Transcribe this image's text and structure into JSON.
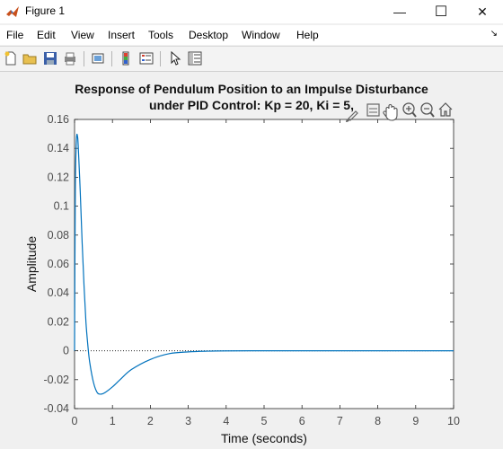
{
  "window": {
    "title": "Figure 1",
    "minimize": "—",
    "maximize": "☐",
    "close": "✕"
  },
  "menu": {
    "items": [
      "File",
      "Edit",
      "View",
      "Insert",
      "Tools",
      "Desktop",
      "Window",
      "Help"
    ],
    "arrow": "↘"
  },
  "toolbar": {
    "icons": [
      "new-figure-icon",
      "open-file-icon",
      "save-icon",
      "print-icon",
      "link-plot-icon",
      "colorbar-icon",
      "legend-icon",
      "edit-plot-arrow-icon",
      "property-inspector-icon"
    ]
  },
  "axes_toolbar": {
    "icons": [
      "brush-icon",
      "data-tips-icon",
      "pan-hand-icon",
      "zoom-in-icon",
      "zoom-out-icon",
      "home-icon"
    ]
  },
  "chart_data": {
    "type": "line",
    "title_line1": "Response of Pendulum Position to an Impulse Disturbance",
    "title_line2": "under PID Control: Kp = 20, Ki = 5,",
    "xlabel": "Time (seconds)",
    "ylabel": "Amplitude",
    "xlim": [
      0,
      10
    ],
    "ylim": [
      -0.04,
      0.16
    ],
    "xticks": [
      "0",
      "1",
      "2",
      "3",
      "4",
      "5",
      "6",
      "7",
      "8",
      "9",
      "10"
    ],
    "yticks": [
      "-0.04",
      "-0.02",
      "0",
      "0.02",
      "0.04",
      "0.06",
      "0.08",
      "0.1",
      "0.12",
      "0.14",
      "0.16"
    ],
    "grid": false,
    "zero_line": "dotted",
    "line_color": "#0072BD",
    "series": [
      {
        "x": [
          0,
          0.02,
          0.05,
          0.08,
          0.1,
          0.15,
          0.2,
          0.25,
          0.3,
          0.35,
          0.4,
          0.5,
          0.6,
          0.7,
          0.8,
          1.0,
          1.2,
          1.5,
          2.0,
          2.5,
          3.0,
          3.5,
          4.0,
          5.0,
          6.0,
          7.0,
          8.0,
          9.0,
          10.0
        ],
        "values": [
          0,
          0.11,
          0.146,
          0.148,
          0.14,
          0.11,
          0.075,
          0.045,
          0.02,
          0.004,
          -0.008,
          -0.022,
          -0.029,
          -0.03,
          -0.029,
          -0.025,
          -0.02,
          -0.013,
          -0.006,
          -0.002,
          -0.0008,
          -0.0003,
          -0.0001,
          0,
          0,
          0,
          0,
          0,
          0
        ]
      }
    ]
  }
}
